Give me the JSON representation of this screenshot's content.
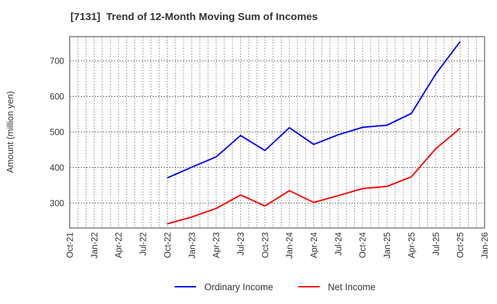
{
  "chart_data": {
    "type": "line",
    "title": "[7131]  Trend of 12-Month Moving Sum of Incomes",
    "xlabel": "",
    "ylabel": "Amount (million yen)",
    "ylim": [
      228,
      768
    ],
    "yticks": [
      300,
      400,
      500,
      600,
      700
    ],
    "x_tick_labels": [
      "Oct-21",
      "Jan-22",
      "Apr-22",
      "Jul-22",
      "Oct-22",
      "Jan-23",
      "Apr-23",
      "Jul-23",
      "Oct-23",
      "Jan-24",
      "Apr-24",
      "Jul-24",
      "Oct-24",
      "Jan-25",
      "Apr-25",
      "Jul-25",
      "Oct-25",
      "Jan-26"
    ],
    "grid": true,
    "legend_position": "bottom",
    "categories": [
      "Oct-22",
      "Jan-23",
      "Apr-23",
      "Jul-23",
      "Oct-23",
      "Jan-24",
      "Apr-24",
      "Jul-24",
      "Oct-24",
      "Jan-25",
      "Apr-25",
      "Jul-25",
      "Oct-25"
    ],
    "series": [
      {
        "name": "Ordinary Income",
        "color": "#0000ff",
        "values": [
          371,
          401,
          430,
          490,
          448,
          512,
          465,
          492,
          513,
          519,
          552,
          663,
          754
        ]
      },
      {
        "name": "Net Income",
        "color": "#ff0000",
        "values": [
          242,
          261,
          285,
          323,
          292,
          335,
          302,
          321,
          341,
          347,
          374,
          453,
          510
        ]
      }
    ]
  }
}
